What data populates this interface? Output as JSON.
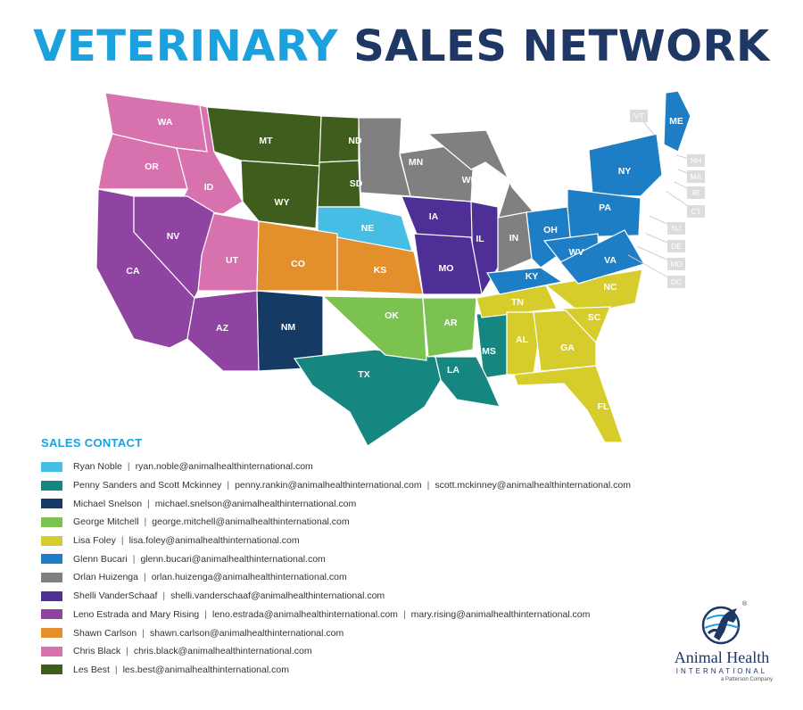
{
  "header": {
    "title_part1": "VETERINARY",
    "title_part2": "SALES NETWORK"
  },
  "contacts_title": "SALES CONTACT",
  "contacts": [
    {
      "color": "#45bde5",
      "name": "Ryan Noble",
      "emails": [
        "ryan.noble@animalhealthinternational.com"
      ]
    },
    {
      "color": "#168780",
      "name": "Penny Sanders and Scott Mckinney",
      "emails": [
        "penny.rankin@animalhealthinternational.com",
        "scott.mckinney@animalhealthinternational.com"
      ]
    },
    {
      "color": "#153a63",
      "name": "Michael Snelson",
      "emails": [
        "michael.snelson@animalhealthinternational.com"
      ]
    },
    {
      "color": "#7cc250",
      "name": "George Mitchell",
      "emails": [
        "george.mitchell@animalhealthinternational.com"
      ]
    },
    {
      "color": "#d6cc2c",
      "name": "Lisa Foley",
      "emails": [
        "lisa.foley@animalhealthinternational.com"
      ]
    },
    {
      "color": "#1d7ec5",
      "name": "Glenn Bucari",
      "emails": [
        "glenn.bucari@animalhealthinternational.com"
      ]
    },
    {
      "color": "#808080",
      "name": "Orlan Huizenga",
      "emails": [
        "orlan.huizenga@animalhealthinternational.com"
      ]
    },
    {
      "color": "#4e2f95",
      "name": "Shelli VanderSchaaf",
      "emails": [
        "shelli.vanderschaaf@animalhealthinternational.com"
      ]
    },
    {
      "color": "#8e44a0",
      "name": "Leno Estrada and Mary Rising",
      "emails": [
        "leno.estrada@animalhealthinternational.com",
        "mary.rising@animalhealthinternational.com"
      ]
    },
    {
      "color": "#e38f2c",
      "name": "Shawn Carlson",
      "emails": [
        "shawn.carlson@animalhealthinternational.com"
      ]
    },
    {
      "color": "#d872ae",
      "name": "Chris Black",
      "emails": [
        "chris.black@animalhealthinternational.com"
      ]
    },
    {
      "color": "#3f5d1d",
      "name": "Les Best",
      "emails": [
        "les.best@animalhealthinternational.com"
      ]
    }
  ],
  "territories": [
    {
      "abbr": "WA",
      "color": "#d872ae"
    },
    {
      "abbr": "OR",
      "color": "#d872ae"
    },
    {
      "abbr": "ID",
      "color": "#d872ae"
    },
    {
      "abbr": "UT",
      "color": "#d872ae"
    },
    {
      "abbr": "MT",
      "color": "#3f5d1d"
    },
    {
      "abbr": "WY",
      "color": "#3f5d1d"
    },
    {
      "abbr": "ND",
      "color": "#3f5d1d"
    },
    {
      "abbr": "SD",
      "color": "#3f5d1d"
    },
    {
      "abbr": "MN",
      "color": "#808080"
    },
    {
      "abbr": "WI",
      "color": "#808080"
    },
    {
      "abbr": "MI",
      "color": "#808080"
    },
    {
      "abbr": "IN",
      "color": "#808080"
    },
    {
      "abbr": "CA",
      "color": "#8e44a0"
    },
    {
      "abbr": "NV",
      "color": "#8e44a0"
    },
    {
      "abbr": "AZ",
      "color": "#8e44a0"
    },
    {
      "abbr": "NE",
      "color": "#45bde5"
    },
    {
      "abbr": "IA",
      "color": "#4e2f95"
    },
    {
      "abbr": "IL",
      "color": "#4e2f95"
    },
    {
      "abbr": "MO",
      "color": "#4e2f95"
    },
    {
      "abbr": "CO",
      "color": "#e38f2c"
    },
    {
      "abbr": "KS",
      "color": "#e38f2c"
    },
    {
      "abbr": "NM",
      "color": "#153a63"
    },
    {
      "abbr": "MS",
      "color": "#168780"
    },
    {
      "abbr": "TX",
      "color": "#168780"
    },
    {
      "abbr": "LA",
      "color": "#168780"
    },
    {
      "abbr": "OK",
      "color": "#7cc250"
    },
    {
      "abbr": "AR",
      "color": "#7cc250"
    },
    {
      "abbr": "TN",
      "color": "#d6cc2c"
    },
    {
      "abbr": "NC",
      "color": "#d6cc2c"
    },
    {
      "abbr": "SC",
      "color": "#d6cc2c"
    },
    {
      "abbr": "AL",
      "color": "#d6cc2c"
    },
    {
      "abbr": "GA",
      "color": "#d6cc2c"
    },
    {
      "abbr": "FL",
      "color": "#d6cc2c"
    },
    {
      "abbr": "ME",
      "color": "#1d7ec5"
    },
    {
      "abbr": "NY",
      "color": "#1d7ec5"
    },
    {
      "abbr": "PA",
      "color": "#1d7ec5"
    },
    {
      "abbr": "OH",
      "color": "#1d7ec5"
    },
    {
      "abbr": "WV",
      "color": "#1d7ec5"
    },
    {
      "abbr": "VA",
      "color": "#1d7ec5"
    },
    {
      "abbr": "KY",
      "color": "#1d7ec5"
    }
  ],
  "small_state_tags": [
    "VT",
    "NH",
    "MA",
    "RI",
    "CT",
    "NJ",
    "DE",
    "MD",
    "DC"
  ],
  "logo": {
    "name": "Animal Health",
    "sub": "INTERNATIONAL",
    "company": "a Patterson Company",
    "registered": "®"
  }
}
